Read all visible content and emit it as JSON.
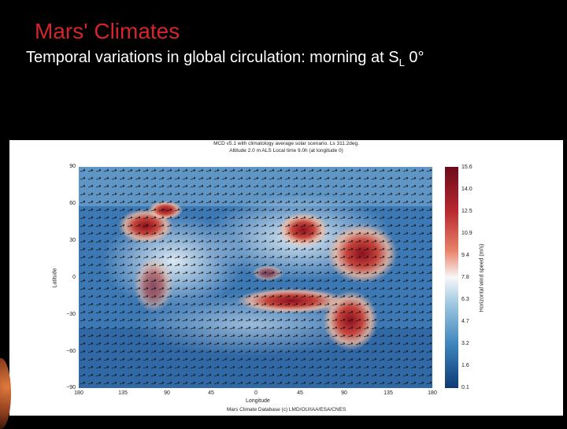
{
  "slide": {
    "title": "Mars' Climates",
    "subtitle_main": "Temporal variations in global circulation: morning at S",
    "subtitle_sub": "L",
    "subtitle_end": " 0°"
  },
  "figure": {
    "header_line1": "MCD v5.1 with climatology average solar scenario. Ls 311.2deg.",
    "header_line2": "Altitude 2.0 m ALS Local time 9.0h (at longitude 0)",
    "ylabel": "Latitude",
    "xlabel": "Longitude",
    "yticks": [
      "90",
      "60",
      "30",
      "0",
      "−30",
      "−60",
      "−90"
    ],
    "xticks": [
      "180",
      "135",
      "90",
      "45",
      "0",
      "45",
      "90",
      "135",
      "180"
    ],
    "colorbar_label": "Horizontal wind speed (m/s)",
    "colorbar_ticks": [
      "15.6",
      "14.0",
      "12.5",
      "10.9",
      "9.4",
      "7.8",
      "6.3",
      "4.7",
      "3.2",
      "1.6",
      "0.1"
    ],
    "footer": "Mars Climate Database (c) LMD/OU/IAA/ESA/CNES"
  },
  "colors": {
    "title": "#d4252d",
    "low": "#1f4e8c",
    "mid": "#f2f2f2",
    "high": "#8b0f1d"
  }
}
